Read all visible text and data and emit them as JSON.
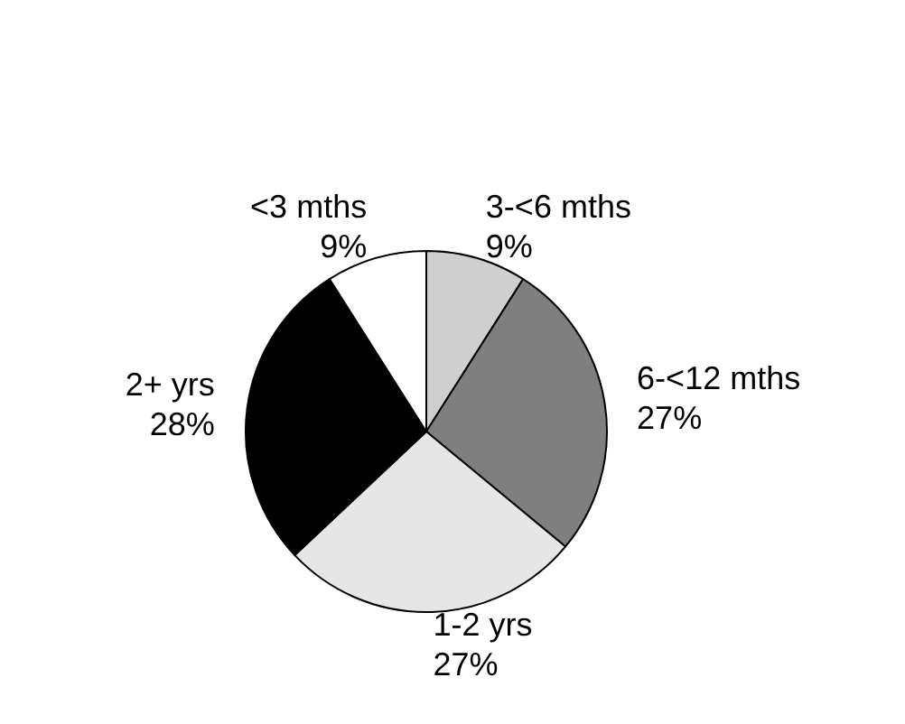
{
  "chart_data": {
    "type": "pie",
    "categories": [
      "3-<6 mths",
      "6-<12 mths",
      "1-2 yrs",
      "2+ yrs",
      "<3 mths"
    ],
    "values": [
      9,
      27,
      27,
      28,
      9
    ],
    "colors": [
      "#cfcfcf",
      "#7f7f7f",
      "#e6e6e6",
      "#000000",
      "#ffffff"
    ],
    "value_labels": [
      "9%",
      "27%",
      "27%",
      "28%",
      "9%"
    ],
    "legend": false
  }
}
